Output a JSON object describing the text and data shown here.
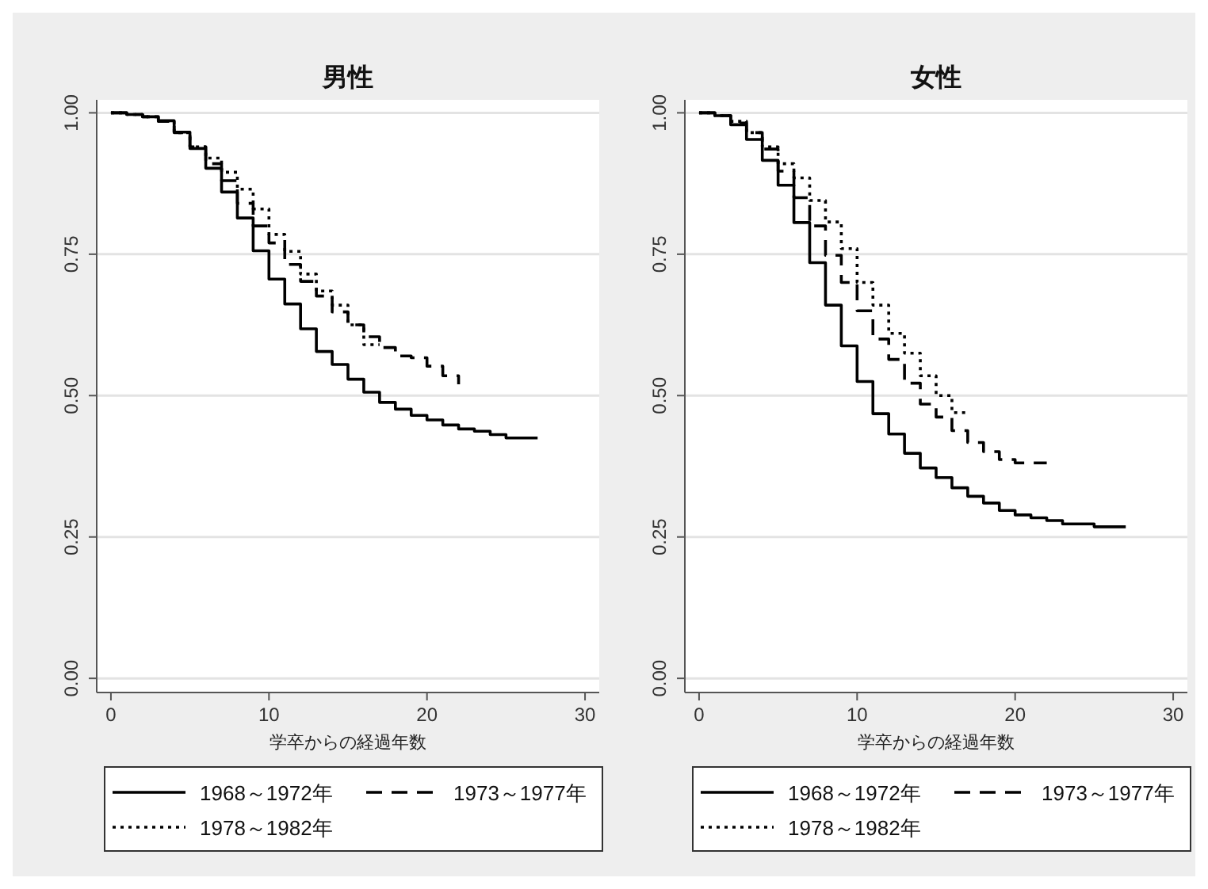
{
  "chart_data": [
    {
      "type": "step",
      "title": "男性",
      "xlabel": "学卒からの経過年数",
      "xlim": [
        -0.9,
        30.9
      ],
      "xticks": [
        0,
        10,
        20,
        30
      ],
      "ylim": [
        -0.025,
        1.023
      ],
      "yticks": [
        {
          "value": 0,
          "label": "0.00"
        },
        {
          "value": 0.25,
          "label": "0.25"
        },
        {
          "value": 0.5,
          "label": "0.50"
        },
        {
          "value": 0.75,
          "label": "0.75"
        },
        {
          "value": 1,
          "label": "1.00"
        }
      ],
      "grid": "y",
      "legend": "bottom",
      "series": [
        {
          "name": "1968～1972年",
          "color": "#000000",
          "line_style": "solid",
          "x": [
            0,
            1,
            2,
            3,
            4,
            5,
            6,
            7,
            8,
            9,
            10,
            11,
            12,
            13,
            14,
            15,
            16,
            17,
            18,
            19,
            20,
            21,
            22,
            23,
            24,
            25,
            27
          ],
          "values": [
            1.0,
            0.997,
            0.993,
            0.986,
            0.966,
            0.937,
            0.902,
            0.86,
            0.814,
            0.756,
            0.706,
            0.662,
            0.618,
            0.578,
            0.555,
            0.529,
            0.506,
            0.488,
            0.476,
            0.465,
            0.457,
            0.448,
            0.441,
            0.437,
            0.431,
            0.425,
            0.425
          ]
        },
        {
          "name": "1973～1977年",
          "color": "#000000",
          "line_style": "dashed",
          "x": [
            0,
            1,
            2,
            3,
            4,
            5,
            6,
            7,
            8,
            9,
            10,
            11,
            12,
            13,
            14,
            15,
            16,
            17,
            18,
            19,
            20,
            21,
            22
          ],
          "values": [
            1.0,
            0.997,
            0.993,
            0.985,
            0.965,
            0.94,
            0.91,
            0.88,
            0.84,
            0.8,
            0.77,
            0.732,
            0.702,
            0.676,
            0.648,
            0.625,
            0.604,
            0.585,
            0.57,
            0.567,
            0.552,
            0.535,
            0.52
          ]
        },
        {
          "name": "1978～1982年",
          "color": "#000000",
          "line_style": "dotted",
          "x": [
            0,
            1,
            2,
            3,
            4,
            5,
            6,
            7,
            8,
            9,
            10,
            11,
            12,
            13,
            14,
            15,
            16,
            17
          ],
          "values": [
            1.0,
            0.997,
            0.993,
            0.985,
            0.965,
            0.94,
            0.92,
            0.895,
            0.865,
            0.83,
            0.785,
            0.755,
            0.715,
            0.685,
            0.66,
            0.625,
            0.59,
            0.59
          ]
        }
      ]
    },
    {
      "type": "step",
      "title": "女性",
      "xlabel": "学卒からの経過年数",
      "xlim": [
        -0.9,
        30.9
      ],
      "xticks": [
        0,
        10,
        20,
        30
      ],
      "ylim": [
        -0.025,
        1.023
      ],
      "yticks": [
        {
          "value": 0,
          "label": "0.00"
        },
        {
          "value": 0.25,
          "label": "0.25"
        },
        {
          "value": 0.5,
          "label": "0.50"
        },
        {
          "value": 0.75,
          "label": "0.75"
        },
        {
          "value": 1,
          "label": "1.00"
        }
      ],
      "grid": "y",
      "legend": "bottom",
      "series": [
        {
          "name": "1968～1972年",
          "color": "#000000",
          "line_style": "solid",
          "x": [
            0,
            1,
            2,
            3,
            4,
            5,
            6,
            7,
            8,
            9,
            10,
            11,
            12,
            13,
            14,
            15,
            16,
            17,
            18,
            19,
            20,
            21,
            22,
            23,
            25,
            27
          ],
          "values": [
            1.0,
            0.995,
            0.979,
            0.953,
            0.916,
            0.872,
            0.806,
            0.735,
            0.66,
            0.588,
            0.525,
            0.468,
            0.432,
            0.398,
            0.372,
            0.355,
            0.337,
            0.322,
            0.31,
            0.297,
            0.289,
            0.284,
            0.279,
            0.273,
            0.268,
            0.268
          ]
        },
        {
          "name": "1973～1977年",
          "color": "#000000",
          "line_style": "dashed",
          "x": [
            0,
            1,
            2,
            3,
            4,
            5,
            6,
            7,
            8,
            9,
            10,
            11,
            12,
            13,
            14,
            15,
            16,
            17,
            18,
            19,
            20,
            22
          ],
          "values": [
            1.0,
            0.995,
            0.982,
            0.965,
            0.936,
            0.897,
            0.85,
            0.8,
            0.748,
            0.7,
            0.65,
            0.6,
            0.564,
            0.522,
            0.485,
            0.462,
            0.438,
            0.417,
            0.401,
            0.387,
            0.381,
            0.381
          ]
        },
        {
          "name": "1978～1982年",
          "color": "#000000",
          "line_style": "dotted",
          "x": [
            0,
            1,
            2,
            3,
            4,
            5,
            6,
            7,
            8,
            9,
            10,
            11,
            12,
            13,
            14,
            15,
            16,
            17
          ],
          "values": [
            1.0,
            0.995,
            0.985,
            0.965,
            0.94,
            0.91,
            0.885,
            0.845,
            0.807,
            0.76,
            0.7,
            0.66,
            0.61,
            0.575,
            0.535,
            0.5,
            0.47,
            0.47
          ]
        }
      ]
    }
  ]
}
